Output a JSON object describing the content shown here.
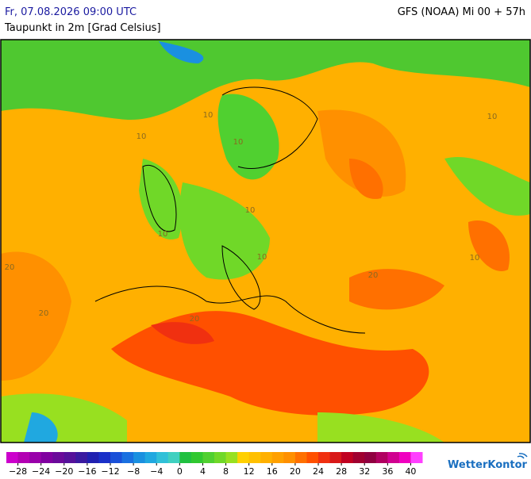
{
  "header": {
    "datetime": "Fr, 07.08.2026 09:00 UTC",
    "model": "GFS (NOAA) Mi 00 + 57h",
    "subtitle": "Taupunkt in 2m [Grad Celsius]"
  },
  "map_labels": [
    "10",
    "10",
    "10",
    "10",
    "10",
    "10",
    "10",
    "20",
    "20",
    "20",
    "20",
    "10"
  ],
  "colorbar": {
    "lim": [
      -30,
      42
    ],
    "colors": [
      "#cc00cc",
      "#b300b3",
      "#9900aa",
      "#8000a0",
      "#6a0a9a",
      "#55119a",
      "#3a1aa0",
      "#2020b0",
      "#1a30c8",
      "#1a50d8",
      "#1a70e0",
      "#1a90e0",
      "#20a8e0",
      "#30c0d8",
      "#40d0c0",
      "#20c040",
      "#30c830",
      "#50d030",
      "#70d828",
      "#98e020",
      "#ffd000",
      "#ffc000",
      "#ffb000",
      "#ffa000",
      "#ff9000",
      "#ff7000",
      "#ff5000",
      "#f03010",
      "#d81818",
      "#c00020",
      "#a00030",
      "#900040",
      "#b00060",
      "#d00090",
      "#f000c0",
      "#ff40ff"
    ],
    "ticks": [
      {
        "value": -28,
        "label": "−28"
      },
      {
        "value": -24,
        "label": "−24"
      },
      {
        "value": -20,
        "label": "−20"
      },
      {
        "value": -16,
        "label": "−16"
      },
      {
        "value": -12,
        "label": "−12"
      },
      {
        "value": -8,
        "label": "−8"
      },
      {
        "value": -4,
        "label": "−4"
      },
      0,
      4,
      8,
      12,
      16,
      20,
      24,
      28,
      32,
      36,
      40
    ]
  },
  "brand": "WetterKontor"
}
